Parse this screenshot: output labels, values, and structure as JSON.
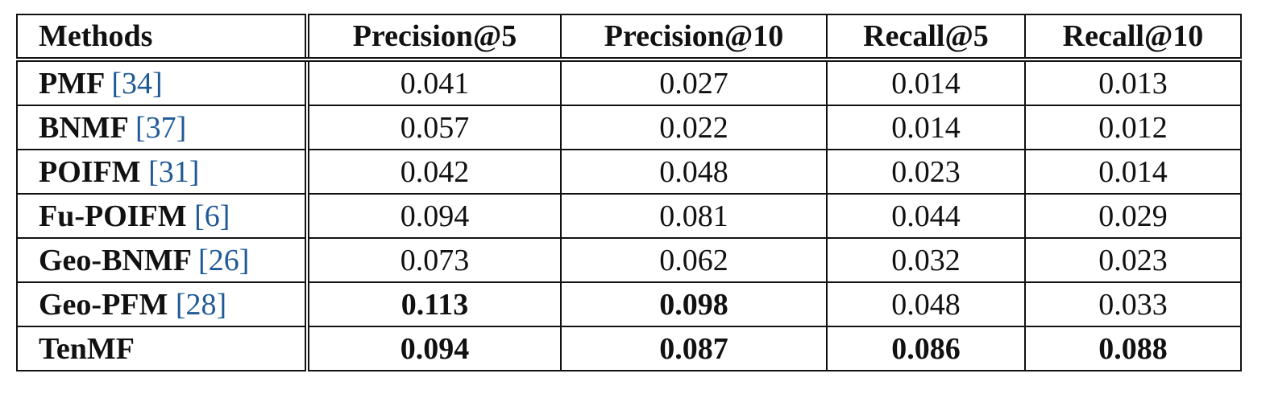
{
  "table": {
    "headers": [
      "Methods",
      "Precision@5",
      "Precision@10",
      "Recall@5",
      "Recall@10"
    ],
    "rows": [
      {
        "method": "PMF",
        "cite": "[34]",
        "values": [
          "0.041",
          "0.027",
          "0.014",
          "0.013"
        ],
        "bold": [
          false,
          false,
          false,
          false
        ]
      },
      {
        "method": "BNMF",
        "cite": "[37]",
        "values": [
          "0.057",
          "0.022",
          "0.014",
          "0.012"
        ],
        "bold": [
          false,
          false,
          false,
          false
        ]
      },
      {
        "method": "POIFM",
        "cite": "[31]",
        "values": [
          "0.042",
          "0.048",
          "0.023",
          "0.014"
        ],
        "bold": [
          false,
          false,
          false,
          false
        ]
      },
      {
        "method": "Fu-POIFM",
        "cite": "[6]",
        "values": [
          "0.094",
          "0.081",
          "0.044",
          "0.029"
        ],
        "bold": [
          false,
          false,
          false,
          false
        ]
      },
      {
        "method": "Geo-BNMF",
        "cite": "[26]",
        "values": [
          "0.073",
          "0.062",
          "0.032",
          "0.023"
        ],
        "bold": [
          false,
          false,
          false,
          false
        ]
      },
      {
        "method": "Geo-PFM",
        "cite": "[28]",
        "values": [
          "0.113",
          "0.098",
          "0.048",
          "0.033"
        ],
        "bold": [
          true,
          true,
          false,
          false
        ]
      },
      {
        "method": "TenMF",
        "cite": "",
        "values": [
          "0.094",
          "0.087",
          "0.086",
          "0.088"
        ],
        "bold": [
          true,
          true,
          true,
          true
        ]
      }
    ]
  },
  "colors": {
    "citation": "#1f5a96",
    "text": "#111111",
    "rule": "#111111"
  }
}
